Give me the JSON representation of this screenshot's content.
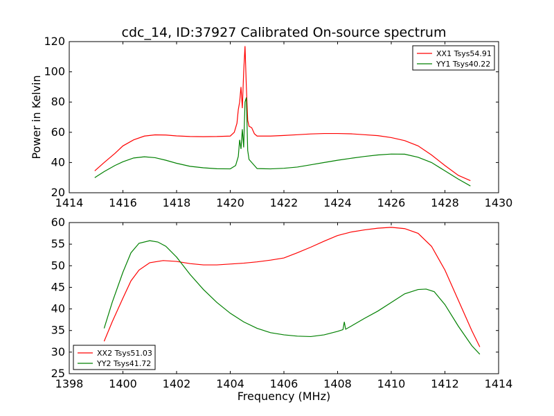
{
  "figure": {
    "title": "cdc_14, ID:37927 Calibrated On-source spectrum",
    "xlabel": "Frequency (MHz)"
  },
  "colors": {
    "red": "#ff0000",
    "green": "#008000",
    "axis": "#000000"
  },
  "chart_data": [
    {
      "type": "line",
      "ylabel": "Power in Kelvin",
      "xlim": [
        1414,
        1430
      ],
      "ylim": [
        20,
        120
      ],
      "xticks": [
        1414,
        1416,
        1418,
        1420,
        1422,
        1424,
        1426,
        1428,
        1430
      ],
      "yticks": [
        20,
        40,
        60,
        80,
        100,
        120
      ],
      "legend_position": "top-right",
      "series": [
        {
          "name": "XX1 Tsys54.91",
          "color": "red",
          "x": [
            1414.95,
            1415.3,
            1415.7,
            1416.0,
            1416.4,
            1416.8,
            1417.2,
            1417.6,
            1418.0,
            1418.5,
            1419.0,
            1419.5,
            1420.0,
            1420.15,
            1420.25,
            1420.3,
            1420.35,
            1420.4,
            1420.45,
            1420.5,
            1420.55,
            1420.6,
            1420.65,
            1420.7,
            1420.8,
            1420.9,
            1421.0,
            1421.5,
            1422.0,
            1422.5,
            1423.0,
            1423.5,
            1424.0,
            1424.5,
            1425.0,
            1425.5,
            1426.0,
            1426.5,
            1427.0,
            1427.5,
            1428.0,
            1428.5,
            1428.95
          ],
          "y": [
            34.5,
            40,
            46,
            51,
            55,
            57.5,
            58.3,
            58.2,
            57.6,
            57.2,
            57.1,
            57.2,
            57.5,
            60,
            66,
            75,
            80,
            90,
            76,
            100,
            117,
            90,
            68,
            64,
            63,
            59,
            57.5,
            57.5,
            57.9,
            58.4,
            58.9,
            59.2,
            59.2,
            59,
            58.4,
            57.8,
            56.5,
            54.5,
            51,
            45,
            38,
            31.5,
            28
          ]
        },
        {
          "name": "YY1 Tsys40.22",
          "color": "green",
          "x": [
            1414.95,
            1415.3,
            1415.7,
            1416.0,
            1416.4,
            1416.8,
            1417.2,
            1417.6,
            1418.0,
            1418.5,
            1419.0,
            1419.5,
            1420.0,
            1420.2,
            1420.3,
            1420.35,
            1420.4,
            1420.45,
            1420.5,
            1420.55,
            1420.6,
            1420.65,
            1420.7,
            1420.8,
            1420.9,
            1421.0,
            1421.5,
            1422.0,
            1422.5,
            1423.0,
            1423.5,
            1424.0,
            1424.5,
            1425.0,
            1425.5,
            1426.0,
            1426.5,
            1427.0,
            1427.5,
            1428.0,
            1428.5,
            1428.95
          ],
          "y": [
            30,
            34,
            38,
            40.5,
            43,
            43.8,
            43.2,
            41.5,
            39.5,
            37.5,
            36.5,
            35.9,
            35.8,
            38,
            44,
            55,
            49,
            62,
            50,
            80,
            83,
            48,
            42,
            40,
            38,
            36,
            35.8,
            36.2,
            37,
            38.5,
            40,
            41.5,
            42.8,
            44,
            45,
            45.6,
            45.5,
            43.5,
            40,
            34.5,
            29,
            24.5
          ]
        }
      ]
    },
    {
      "type": "line",
      "ylabel": "",
      "xlim": [
        1398,
        1414
      ],
      "ylim": [
        25,
        60
      ],
      "xticks": [
        1398,
        1400,
        1402,
        1404,
        1406,
        1408,
        1410,
        1412,
        1414
      ],
      "yticks": [
        25,
        30,
        35,
        40,
        45,
        50,
        55,
        60
      ],
      "legend_position": "lower-left",
      "series": [
        {
          "name": "XX2 Tsys51.03",
          "color": "red",
          "x": [
            1399.3,
            1399.6,
            1400.0,
            1400.3,
            1400.6,
            1401.0,
            1401.5,
            1402.0,
            1402.5,
            1403.0,
            1403.5,
            1404.0,
            1404.5,
            1405.0,
            1405.5,
            1406.0,
            1406.5,
            1407.0,
            1407.5,
            1408.0,
            1408.5,
            1409.0,
            1409.5,
            1410.0,
            1410.5,
            1411.0,
            1411.5,
            1412.0,
            1412.5,
            1413.0,
            1413.3
          ],
          "y": [
            32.5,
            37,
            42.5,
            46.5,
            49,
            50.7,
            51.2,
            51,
            50.5,
            50.2,
            50.2,
            50.4,
            50.6,
            50.9,
            51.3,
            51.8,
            53,
            54.3,
            55.7,
            57,
            57.8,
            58.3,
            58.7,
            58.9,
            58.6,
            57.5,
            54.5,
            49,
            42,
            35,
            31.2
          ]
        },
        {
          "name": "YY2 Tsys41.72",
          "color": "green",
          "x": [
            1399.3,
            1399.6,
            1400.0,
            1400.3,
            1400.6,
            1401.0,
            1401.3,
            1401.6,
            1402.0,
            1402.5,
            1403.0,
            1403.5,
            1404.0,
            1404.5,
            1405.0,
            1405.5,
            1406.0,
            1406.5,
            1407.0,
            1407.5,
            1408.0,
            1408.2,
            1408.25,
            1408.3,
            1408.5,
            1409.0,
            1409.5,
            1410.0,
            1410.5,
            1411.0,
            1411.3,
            1411.6,
            1412.0,
            1412.5,
            1413.0,
            1413.3
          ],
          "y": [
            35.5,
            41.5,
            48.5,
            53,
            55.2,
            55.8,
            55.5,
            54.5,
            52,
            48,
            44.5,
            41.5,
            39,
            37,
            35.5,
            34.5,
            34,
            33.7,
            33.6,
            34,
            34.8,
            35.2,
            37,
            35.3,
            36,
            37.8,
            39.5,
            41.5,
            43.5,
            44.5,
            44.6,
            44,
            41,
            36,
            31.5,
            29.5
          ]
        }
      ]
    }
  ]
}
